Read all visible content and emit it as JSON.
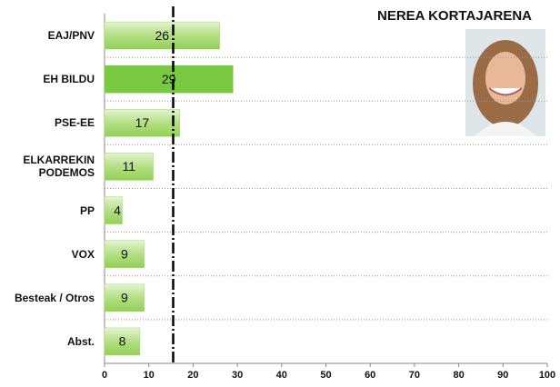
{
  "chart_data": {
    "type": "bar",
    "orientation": "horizontal",
    "title": "NEREA KORTAJARENA",
    "categories": [
      "EAJ/PNV",
      "EH BILDU",
      "PSE-EE",
      "ELKARREKIN PODEMOS",
      "PP",
      "VOX",
      "Besteak / Otros",
      "Abst."
    ],
    "values": [
      26,
      29,
      17,
      11,
      4,
      9,
      9,
      8
    ],
    "colors": [
      "#a6d86e",
      "#7ac943",
      "#a6d86e",
      "#a6d86e",
      "#a6d86e",
      "#a6d86e",
      "#a6d86e",
      "#a6d86e"
    ],
    "xlim": [
      0,
      100
    ],
    "xticks": [
      0,
      10,
      20,
      30,
      40,
      50,
      60,
      70,
      80,
      90,
      100
    ],
    "reference_line": 15.5,
    "grid": true
  }
}
